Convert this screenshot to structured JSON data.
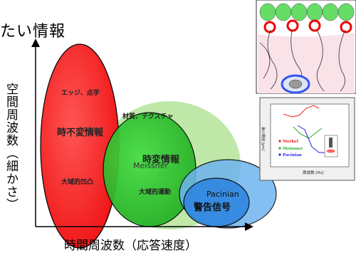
{
  "title_fragment": "たい情報",
  "axes": {
    "x_label": "時間周波数（応答速度）",
    "y_label": "空間周波数（細かさ）"
  },
  "regions": [
    {
      "name": "Merkel-red",
      "color": "#ff2020",
      "labels": [
        "エッジ、点字",
        "時不変情報",
        "大域的凹凸"
      ],
      "overlay": "Merkel"
    },
    {
      "name": "Meissner-green",
      "color": "#22bb22",
      "labels": [
        "材質、テクスチャ",
        "時変情報",
        "大域的運動"
      ],
      "overlay": "Meissner"
    },
    {
      "name": "Pacinian-blue",
      "color": "#2277dd",
      "labels": [
        "警告信号"
      ],
      "overlay": "Pacinian"
    }
  ],
  "inset_chart": {
    "x_axis_label": "周波数 [Hz]",
    "y_axis_label": "最小閾値 [μm]",
    "legend": [
      {
        "label": "Merkel",
        "color": "#ee2222"
      },
      {
        "label": "Meissner",
        "color": "#22aa22"
      },
      {
        "label": "Pacinian",
        "color": "#2222ee"
      }
    ]
  },
  "colors": {
    "red": "#ff2020",
    "green": "#22bb22",
    "blue": "#2277dd",
    "light_green": "#b8e6a0"
  }
}
